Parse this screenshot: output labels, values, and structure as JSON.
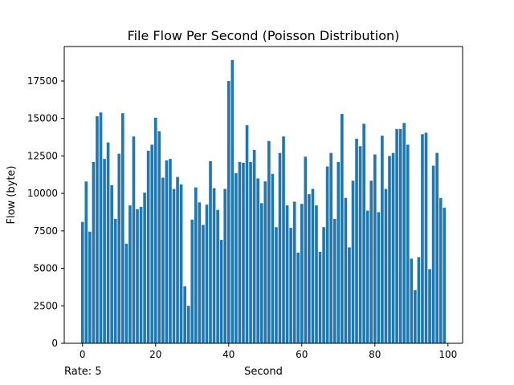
{
  "chart_data": {
    "type": "bar",
    "title": "File Flow Per Second (Poisson Distribution)",
    "xlabel": "Second",
    "ylabel": "Flow (byte)",
    "xlim": [
      -5,
      104
    ],
    "ylim": [
      0,
      19800
    ],
    "xticks": [
      0,
      20,
      40,
      60,
      80,
      100
    ],
    "yticks": [
      0,
      2500,
      5000,
      7500,
      10000,
      12500,
      15000,
      17500
    ],
    "grid": false,
    "legend": "none",
    "bar_color": "#1f77b4",
    "annotation": "Rate: 5",
    "x": [
      0,
      1,
      2,
      3,
      4,
      5,
      6,
      7,
      8,
      9,
      10,
      11,
      12,
      13,
      14,
      15,
      16,
      17,
      18,
      19,
      20,
      21,
      22,
      23,
      24,
      25,
      26,
      27,
      28,
      29,
      30,
      31,
      32,
      33,
      34,
      35,
      36,
      37,
      38,
      39,
      40,
      41,
      42,
      43,
      44,
      45,
      46,
      47,
      48,
      49,
      50,
      51,
      52,
      53,
      54,
      55,
      56,
      57,
      58,
      59,
      60,
      61,
      62,
      63,
      64,
      65,
      66,
      67,
      68,
      69,
      70,
      71,
      72,
      73,
      74,
      75,
      76,
      77,
      78,
      79,
      80,
      81,
      82,
      83,
      84,
      85,
      86,
      87,
      88,
      89,
      90,
      91,
      92,
      93,
      94,
      95,
      96,
      97,
      98,
      99
    ],
    "values": [
      8100,
      10800,
      7450,
      12100,
      15150,
      15400,
      12300,
      13400,
      10550,
      8300,
      12650,
      15350,
      6650,
      9200,
      13800,
      8950,
      9100,
      10050,
      12850,
      13250,
      15050,
      14150,
      11050,
      12200,
      12300,
      10300,
      11100,
      10600,
      3800,
      2500,
      8250,
      10400,
      9400,
      7900,
      9250,
      12150,
      10350,
      8900,
      6900,
      10300,
      17500,
      18900,
      11350,
      12100,
      12050,
      14550,
      12100,
      12900,
      11000,
      9350,
      10800,
      13500,
      11300,
      7750,
      12700,
      13800,
      9200,
      7700,
      9450,
      6050,
      9300,
      12450,
      9950,
      10300,
      9200,
      6100,
      7750,
      11800,
      12700,
      8300,
      12100,
      15300,
      9700,
      6400,
      10850,
      13650,
      13150,
      14650,
      8850,
      10850,
      12600,
      8750,
      13850,
      10300,
      12500,
      12700,
      14300,
      14300,
      14700,
      13250,
      5650,
      3550,
      5750,
      13950,
      14050,
      4950,
      11850,
      12700,
      9700,
      9050
    ]
  }
}
